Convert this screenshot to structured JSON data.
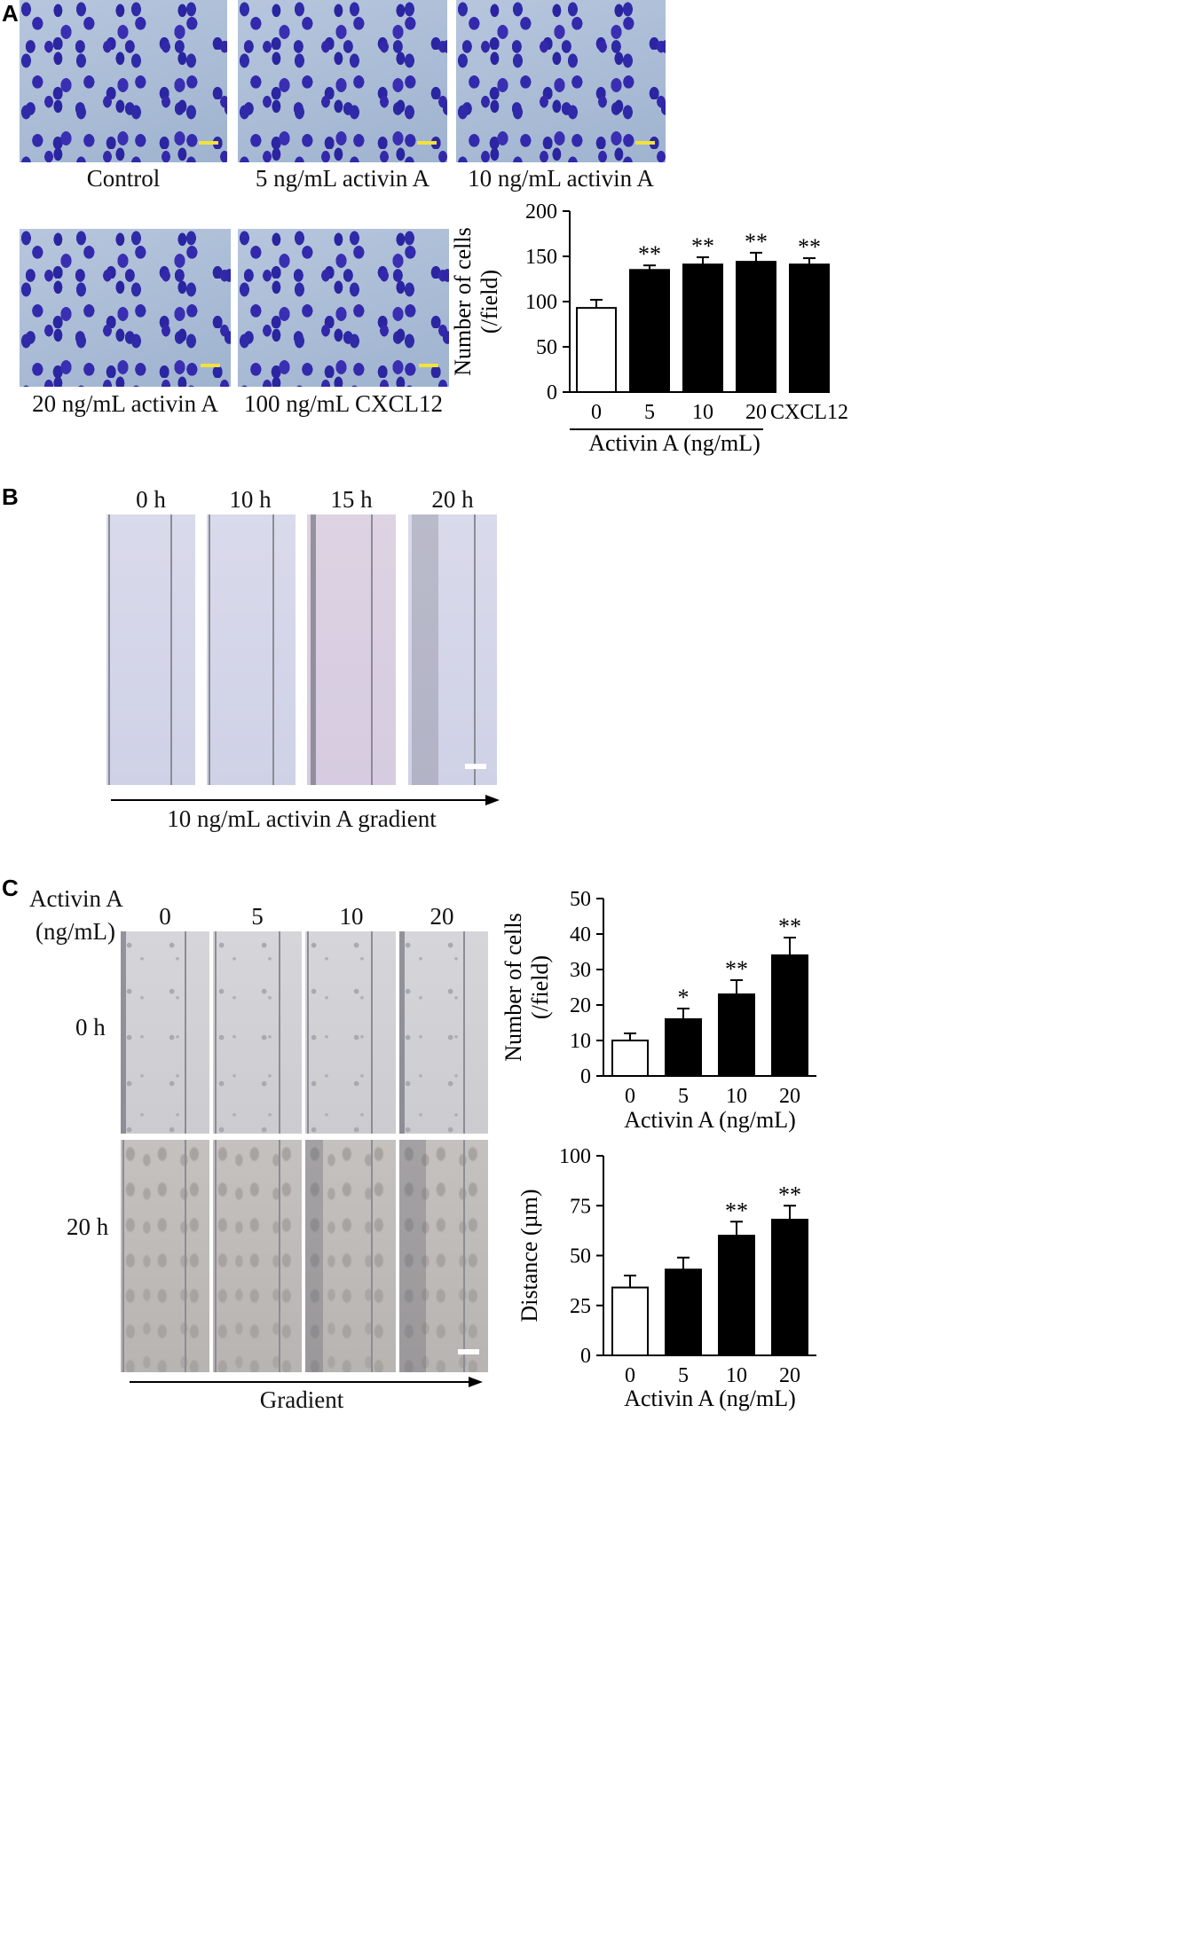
{
  "panels": {
    "a": "A",
    "b": "B",
    "c": "C"
  },
  "panel_a": {
    "image_labels": [
      "Control",
      "5 ng/mL activin A",
      "10 ng/mL activin A",
      "20 ng/mL activin A",
      "100 ng/mL CXCL12"
    ]
  },
  "panel_b": {
    "time_labels": [
      "0 h",
      "10 h",
      "15 h",
      "20 h"
    ],
    "gradient_label": "10 ng/mL activin A gradient"
  },
  "panel_c": {
    "row_header_line1": "Activin A",
    "row_header_line2": "(ng/mL)",
    "col_labels": [
      "0",
      "5",
      "10",
      "20"
    ],
    "row_labels": [
      "0 h",
      "20 h"
    ],
    "gradient_label": "Gradient"
  },
  "chart_data": [
    {
      "id": "A",
      "type": "bar",
      "categories": [
        "0",
        "5",
        "10",
        "20",
        "CXCL12"
      ],
      "values": [
        93,
        135,
        141,
        144,
        141
      ],
      "errors": [
        9,
        5,
        8,
        10,
        7
      ],
      "significance": [
        "",
        "**",
        "**",
        "**",
        "**"
      ],
      "fills": [
        "#ffffff",
        "#000000",
        "#000000",
        "#000000",
        "#000000"
      ],
      "ylabel_line1": "Number of cells",
      "ylabel_line2": "(/field)",
      "xlabel": "Activin A (ng/mL)",
      "ylim": [
        0,
        200
      ],
      "yticks": [
        "0",
        "50",
        "100",
        "150",
        "200"
      ]
    },
    {
      "id": "C-top",
      "type": "bar",
      "categories": [
        "0",
        "5",
        "10",
        "20"
      ],
      "values": [
        10,
        16,
        23,
        34
      ],
      "errors": [
        2,
        3,
        4,
        5
      ],
      "significance": [
        "",
        "*",
        "**",
        "**"
      ],
      "fills": [
        "#ffffff",
        "#000000",
        "#000000",
        "#000000"
      ],
      "ylabel_line1": "Number of cells",
      "ylabel_line2": "(/field)",
      "xlabel": "Activin A (ng/mL)",
      "ylim": [
        0,
        50
      ],
      "yticks": [
        "0",
        "10",
        "20",
        "30",
        "40",
        "50"
      ]
    },
    {
      "id": "C-bottom",
      "type": "bar",
      "categories": [
        "0",
        "5",
        "10",
        "20"
      ],
      "values": [
        34,
        43,
        60,
        68
      ],
      "errors": [
        6,
        6,
        7,
        7
      ],
      "significance": [
        "",
        "",
        "**",
        "**"
      ],
      "fills": [
        "#ffffff",
        "#000000",
        "#000000",
        "#000000"
      ],
      "ylabel_line1": "Distance (µm)",
      "ylabel_line2": "",
      "xlabel": "Activin A (ng/mL)",
      "ylim": [
        0,
        100
      ],
      "yticks": [
        "0",
        "25",
        "50",
        "75",
        "100"
      ]
    }
  ]
}
